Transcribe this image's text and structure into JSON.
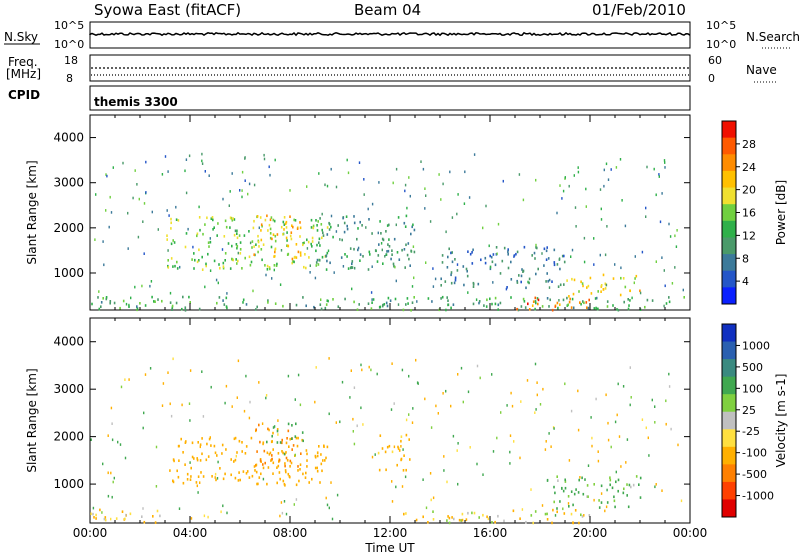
{
  "header": {
    "station": "Syowa East (fitACF)",
    "beam": "Beam 04",
    "date": "01/Feb/2010"
  },
  "strip_nsky": {
    "left_label": "N.Sky",
    "left_ticks": [
      "10^5",
      "10^0"
    ],
    "right_label": "N.Search",
    "right_ticks": [
      "10^5",
      "10^0"
    ]
  },
  "strip_freq": {
    "left_label_1": "Freq.",
    "left_label_2": "[MHz]",
    "left_ticks": [
      "18",
      "8"
    ],
    "right_label": "Nave",
    "right_ticks": [
      "60",
      "0"
    ]
  },
  "strip_cpid": {
    "label": "CPID",
    "value": "themis 3300"
  },
  "time_axis": {
    "label": "Time UT",
    "ticks": [
      "00:00",
      "04:00",
      "08:00",
      "12:00",
      "16:00",
      "20:00",
      "00:00"
    ]
  },
  "chart_data": [
    {
      "type": "heatmap",
      "panel": "power",
      "ylabel": "Slant Range [km]",
      "ylim": [
        180,
        4500
      ],
      "yticks": [
        "1000",
        "2000",
        "3000",
        "4000"
      ],
      "xlim_hours": [
        0,
        24
      ],
      "colorbar": {
        "label": "Power [dB]",
        "ticks": [
          "4",
          "8",
          "12",
          "16",
          "20",
          "24",
          "28"
        ],
        "colors": [
          "#0a20ff",
          "#2456c8",
          "#3c7a9a",
          "#4a9a6a",
          "#2fb04a",
          "#70d040",
          "#f0e030",
          "#ffc000",
          "#ff8c00",
          "#ff5a00",
          "#f01000"
        ]
      },
      "features": [
        {
          "hours": [
            0.0,
            24.0
          ],
          "range_km": [
            200,
            500
          ],
          "power_db": 12
        },
        {
          "hours": [
            3.0,
            9.5
          ],
          "range_km": [
            1100,
            2300
          ],
          "power_db": 16
        },
        {
          "hours": [
            6.5,
            8.5
          ],
          "range_km": [
            1300,
            2300
          ],
          "power_db": 22
        },
        {
          "hours": [
            9.0,
            13.0
          ],
          "range_km": [
            1100,
            2300
          ],
          "power_db": 10
        },
        {
          "hours": [
            17.0,
            20.0
          ],
          "range_km": [
            200,
            500
          ],
          "power_db": 26
        },
        {
          "hours": [
            19.0,
            22.0
          ],
          "range_km": [
            500,
            1000
          ],
          "power_db": 20
        },
        {
          "hours": [
            14.0,
            19.0
          ],
          "range_km": [
            700,
            1600
          ],
          "power_db": 8
        }
      ]
    },
    {
      "type": "heatmap",
      "panel": "velocity",
      "ylabel": "Slant Range [km]",
      "ylim": [
        180,
        4500
      ],
      "yticks": [
        "1000",
        "2000",
        "3000",
        "4000"
      ],
      "xlim_hours": [
        0,
        24
      ],
      "colorbar": {
        "label": "Velocity [m s-1]",
        "ticks": [
          "1000",
          "500",
          "100",
          "25",
          "-25",
          "-100",
          "-500",
          "-1000"
        ],
        "colors": [
          "#1030c0",
          "#2a60b0",
          "#3a8a80",
          "#40a850",
          "#80d040",
          "#c0c0c0",
          "#ffe040",
          "#ffb000",
          "#ff8000",
          "#ff4000",
          "#e00000"
        ]
      },
      "features": [
        {
          "hours": [
            0.0,
            3.0
          ],
          "range_km": [
            200,
            500
          ],
          "velocity": -150
        },
        {
          "hours": [
            3.0,
            9.5
          ],
          "range_km": [
            1000,
            2000
          ],
          "velocity": -300
        },
        {
          "hours": [
            6.5,
            8.5
          ],
          "range_km": [
            1300,
            2300
          ],
          "velocity": -500
        },
        {
          "hours": [
            7.0,
            8.5
          ],
          "range_km": [
            1900,
            2300
          ],
          "velocity": 300
        },
        {
          "hours": [
            11.5,
            12.8
          ],
          "range_km": [
            1300,
            2100
          ],
          "velocity": -200
        },
        {
          "hours": [
            12.5,
            20.0
          ],
          "range_km": [
            200,
            500
          ],
          "velocity": -80
        },
        {
          "hours": [
            18.5,
            22.0
          ],
          "range_km": [
            500,
            1200
          ],
          "velocity": 150
        }
      ]
    }
  ]
}
